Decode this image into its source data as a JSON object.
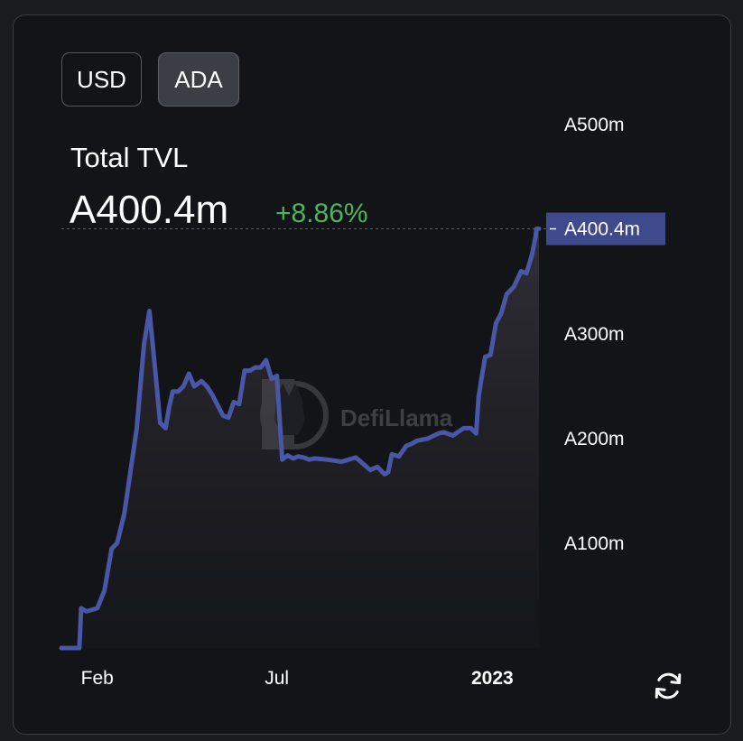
{
  "currency_toggle": {
    "options": [
      {
        "label": "USD",
        "active": false
      },
      {
        "label": "ADA",
        "active": true
      }
    ]
  },
  "header": {
    "title": "Total TVL",
    "value": "A400.4m",
    "change": "+8.86%"
  },
  "watermark": "DefiLlama",
  "colors": {
    "line": "#4a56a6",
    "positive": "#4fb360",
    "tag": "#3f4a8d"
  },
  "chart_data": {
    "type": "area",
    "title": "Total TVL",
    "xlabel": "",
    "ylabel": "",
    "ylim": [
      0,
      500
    ],
    "y_ticks": [
      100,
      200,
      300,
      400,
      500
    ],
    "y_tick_labels": [
      "A100m",
      "A200m",
      "A300m",
      "A400m",
      "A500m"
    ],
    "x_range": [
      0,
      13.5
    ],
    "x_ticks": [
      {
        "pos": 1.0,
        "label": "Feb",
        "bold": false
      },
      {
        "pos": 6.0,
        "label": "Jul",
        "bold": false
      },
      {
        "pos": 12.0,
        "label": "2023",
        "bold": true
      }
    ],
    "current": {
      "value": 400.4,
      "label": "A400.4m"
    },
    "grid": false,
    "series": [
      {
        "name": "",
        "x": [
          0.0,
          0.5,
          0.55,
          0.7,
          1.0,
          1.2,
          1.4,
          1.55,
          1.75,
          1.95,
          2.1,
          2.3,
          2.45,
          2.6,
          2.75,
          2.9,
          3.0,
          3.1,
          3.25,
          3.4,
          3.55,
          3.7,
          3.9,
          4.05,
          4.2,
          4.35,
          4.5,
          4.65,
          4.8,
          4.95,
          5.1,
          5.25,
          5.4,
          5.55,
          5.7,
          5.85,
          6.0,
          6.15,
          6.3,
          6.45,
          6.6,
          6.75,
          6.9,
          7.05,
          7.08,
          7.4,
          7.8,
          8.2,
          8.6,
          8.8,
          9.0,
          9.1,
          9.2,
          9.4,
          9.6,
          9.75,
          9.9,
          10.2,
          10.5,
          10.65,
          10.9,
          11.2,
          11.4,
          11.55,
          11.62,
          11.7,
          11.8,
          11.95,
          12.1,
          12.25,
          12.4,
          12.6,
          12.8,
          12.95,
          13.1,
          13.2,
          13.23,
          13.3
        ],
        "values": [
          0,
          0,
          38,
          35,
          38,
          55,
          95,
          100,
          128,
          175,
          210,
          290,
          322,
          270,
          215,
          210,
          230,
          245,
          245,
          250,
          262,
          250,
          255,
          250,
          242,
          232,
          222,
          220,
          235,
          233,
          265,
          265,
          268,
          268,
          275,
          257,
          260,
          180,
          184,
          181,
          183,
          182,
          180,
          181,
          181,
          180,
          178,
          182,
          170,
          173,
          166,
          168,
          185,
          183,
          193,
          195,
          198,
          200,
          205,
          206,
          203,
          210,
          210,
          205,
          240,
          258,
          278,
          280,
          310,
          320,
          338,
          345,
          360,
          358,
          375,
          392,
          400.4,
          400.4
        ]
      }
    ]
  }
}
